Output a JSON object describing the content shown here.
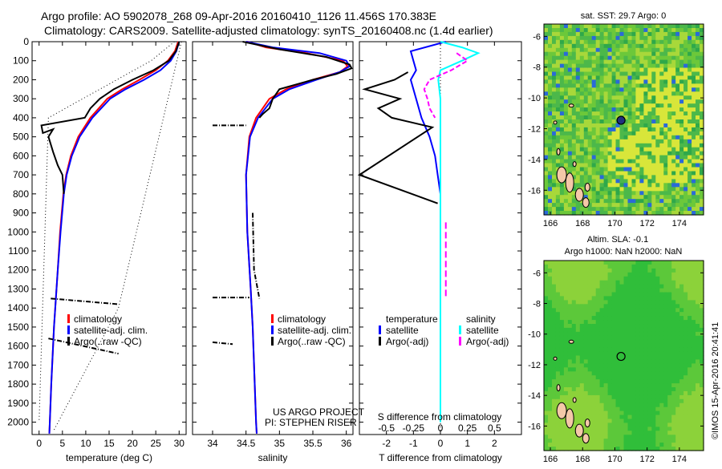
{
  "title_line1": "Argo profile: AO 5902078_268 09-Apr-2016 20160410_1126 11.456S 170.383E",
  "title_line2": "Climatology: CARS2009. Satellite-adjusted climatology: synTS_20160408.nc (1.4d earlier)",
  "colors": {
    "climatology": "#ff0000",
    "satellite": "#0000ff",
    "argo": "#000000",
    "sal_satellite": "#00ffff",
    "sal_argo": "#ff00ff"
  },
  "chart_data": [
    {
      "type": "line",
      "id": "temperature",
      "xlabel": "temperature (deg C)",
      "xlim": [
        -1.5,
        31.5
      ],
      "ylim": [
        0,
        2065
      ],
      "xticks": [
        0,
        5,
        10,
        15,
        20,
        25,
        30
      ],
      "yticks": [
        0,
        100,
        200,
        300,
        400,
        500,
        600,
        700,
        800,
        900,
        1000,
        1100,
        1200,
        1300,
        1400,
        1500,
        1600,
        1700,
        1800,
        1900,
        2000
      ],
      "legend": [
        "climatology",
        "satellite-adj. clim.",
        "Argo(..raw -QC)"
      ],
      "series": [
        {
          "name": "climatology",
          "depth": [
            0,
            50,
            100,
            150,
            200,
            250,
            300,
            400,
            500,
            600,
            700,
            800,
            1000,
            1200,
            1500,
            1800,
            2000,
            2060
          ],
          "values": [
            29.8,
            29.1,
            27.6,
            25,
            21.5,
            17.8,
            14.6,
            11,
            8.4,
            6.8,
            5.8,
            5.2,
            4.5,
            4,
            3.2,
            2.6,
            2.3,
            2.2
          ]
        },
        {
          "name": "satellite-adj. clim.",
          "depth": [
            0,
            50,
            100,
            150,
            200,
            250,
            300,
            400,
            500,
            600,
            700,
            800,
            1000,
            1200,
            1500,
            1800,
            2000,
            2060
          ],
          "values": [
            30,
            29.4,
            28.2,
            26,
            22.5,
            18.5,
            15.2,
            11.4,
            8.7,
            7,
            5.9,
            5.3,
            4.6,
            4,
            3.2,
            2.6,
            2.3,
            2.2
          ]
        },
        {
          "name": "Argo(..raw -QC)",
          "depth": [
            0,
            50,
            100,
            150,
            200,
            250,
            300,
            350,
            400,
            440,
            480,
            460,
            500,
            580,
            650,
            700,
            800
          ],
          "values": [
            30,
            29.3,
            27.8,
            24.5,
            20,
            16,
            13,
            11,
            9.8,
            0.5,
            0.8,
            3,
            2,
            3,
            4,
            5,
            5.3
          ]
        }
      ]
    },
    {
      "type": "line",
      "id": "salinity",
      "xlabel": "salinity",
      "xlim": [
        33.7,
        36.1
      ],
      "ylim": [
        0,
        2065
      ],
      "xticks": [
        34,
        34.5,
        35,
        35.5,
        36
      ],
      "legend": [
        "climatology",
        "satellite-adj. clim.",
        "Argo(..raw -QC)"
      ],
      "annotation": [
        "US ARGO PROJECT",
        "PI: STEPHEN RISER"
      ],
      "series": [
        {
          "name": "climatology",
          "depth": [
            0,
            30,
            60,
            100,
            130,
            160,
            200,
            250,
            300,
            400,
            500,
            700,
            1000,
            1300,
            1500,
            2000,
            2060
          ],
          "values": [
            34.52,
            34.8,
            35.4,
            35.95,
            36.02,
            35.9,
            35.5,
            35.1,
            34.85,
            34.65,
            34.55,
            34.5,
            34.52,
            34.57,
            34.6,
            34.65,
            34.66
          ]
        },
        {
          "name": "satellite-adj. clim.",
          "depth": [
            0,
            30,
            60,
            100,
            130,
            160,
            200,
            250,
            300,
            400,
            500,
            700,
            1000,
            1300,
            1500,
            2000,
            2060
          ],
          "values": [
            34.5,
            34.9,
            35.6,
            36,
            36.05,
            35.9,
            35.55,
            35.15,
            34.9,
            34.68,
            34.56,
            34.5,
            34.52,
            34.57,
            34.6,
            34.65,
            34.66
          ]
        },
        {
          "name": "Argo(..raw -QC)",
          "depth": [
            0,
            40,
            80,
            120,
            140,
            170,
            200,
            250,
            300,
            350,
            380,
            400
          ],
          "values": [
            34.45,
            35,
            35.7,
            36.05,
            36.08,
            35.85,
            35.5,
            35,
            34.9,
            34.85,
            34.75,
            34.7
          ]
        }
      ]
    },
    {
      "type": "line",
      "id": "difference",
      "xlabel": "T difference from climatology",
      "x2label": "S difference from climatology",
      "xlim": [
        -3,
        3
      ],
      "x2lim": [
        -0.75,
        0.75
      ],
      "ylim": [
        0,
        2065
      ],
      "xticks": [
        -2,
        -1,
        0,
        1,
        2
      ],
      "x2ticks": [
        "-0.5",
        "-0.25",
        "0",
        "0.25",
        "0.5"
      ],
      "legend_temperature": {
        "title": "temperature",
        "items": [
          "satellite",
          "Argo(-adj)"
        ]
      },
      "legend_salinity": {
        "title": "salinity",
        "items": [
          "satellite",
          "Argo(-adj)"
        ]
      },
      "series": [
        {
          "name": "T satellite",
          "depth": [
            0,
            50,
            100,
            150,
            200,
            300,
            400,
            500,
            600,
            700,
            800,
            1000,
            1300,
            1400
          ],
          "values": [
            0.2,
            -1.1,
            -1,
            -0.9,
            -1.1,
            -0.9,
            -0.7,
            -0.4,
            -0.2,
            -0.1,
            0,
            0,
            0,
            0
          ]
        },
        {
          "name": "T Argo(-adj)",
          "depth": [
            160,
            200,
            250,
            300,
            350,
            400,
            450,
            700,
            850
          ],
          "values": [
            -1.2,
            -1.7,
            -2.8,
            -1.5,
            -2.3,
            -1.8,
            -0.3,
            -3,
            -0.1
          ]
        },
        {
          "name": "S satellite",
          "depth": [
            0,
            30,
            60,
            100,
            150,
            200,
            300,
            400,
            500,
            700,
            1000,
            1500,
            2000
          ],
          "values": [
            0,
            0.2,
            0.35,
            0.2,
            0,
            -0.02,
            0,
            0,
            0,
            0,
            0,
            0,
            0
          ]
        },
        {
          "name": "S Argo(-adj)",
          "depth": [
            60,
            100,
            150,
            200,
            250,
            300,
            350,
            400
          ],
          "values": [
            0.15,
            0.25,
            0.1,
            -0.1,
            -0.15,
            -0.12,
            -0.1,
            -0.05
          ]
        }
      ]
    },
    {
      "type": "heatmap",
      "id": "sst-map",
      "title": "sat. SST: 29.7 Argo: 0",
      "xticks": [
        166,
        168,
        170,
        172,
        174
      ],
      "yticks": [
        -6,
        -8,
        -10,
        -12,
        -14,
        -16
      ],
      "xlim": [
        165.6,
        175.5
      ],
      "ylim": [
        -17.6,
        -5.2
      ],
      "argo_position": [
        170.383,
        -11.456
      ]
    },
    {
      "type": "heatmap",
      "id": "sla-map",
      "title_line1": "Altim. SLA: -0.1",
      "title_line2": "Argo h1000: NaN h2000: NaN",
      "xticks": [
        166,
        168,
        170,
        172,
        174
      ],
      "yticks": [
        -6,
        -8,
        -10,
        -12,
        -14,
        -16
      ],
      "xlim": [
        165.6,
        175.5
      ],
      "ylim": [
        -17.6,
        -5.2
      ],
      "argo_position": [
        170.383,
        -11.456
      ],
      "credit": "©IMOS 15-Apr-2016 20:41:41"
    }
  ]
}
